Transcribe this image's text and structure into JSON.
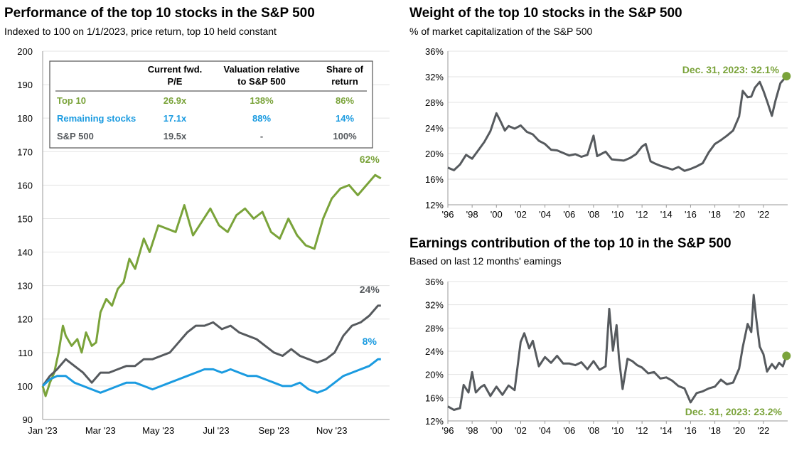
{
  "left_panel": {
    "title": "Performance of the top 10 stocks in the S&P 500",
    "subtitle": "Indexed to 100 on 1/1/2023, price return, top 10 held constant"
  },
  "top_right_panel": {
    "title": "Weight of the top 10 stocks in the S&P 500",
    "subtitle": "% of market capitalization of the S&P 500"
  },
  "bottom_right_panel": {
    "title": "Earnings contribution of the top 10 in the S&P 500",
    "subtitle": "Based on last 12 months' eamings"
  },
  "colors": {
    "top10": "#7AA33A",
    "remaining": "#1B9BE0",
    "sp500": "#565A5E"
  },
  "chart_data": [
    {
      "type": "line",
      "title": "Performance of the top 10 stocks in the S&P 500",
      "subtitle": "Indexed to 100 on 1/1/2023, price return, top 10 held constant",
      "x_ticks": [
        "Jan '23",
        "Mar '23",
        "May '23",
        "Jul '23",
        "Sep '23",
        "Nov '23"
      ],
      "ylim": [
        90,
        200
      ],
      "y_ticks": [
        90,
        100,
        110,
        120,
        130,
        140,
        150,
        160,
        170,
        180,
        190,
        200
      ],
      "x_unit": "month of 2023 (0 = Jan 1)",
      "series": [
        {
          "name": "Top 10",
          "color": "#7AA33A",
          "end_label": "62%",
          "x": [
            0,
            0.1,
            0.25,
            0.4,
            0.55,
            0.7,
            0.8,
            1.0,
            1.2,
            1.35,
            1.5,
            1.7,
            1.85,
            2.0,
            2.2,
            2.4,
            2.6,
            2.8,
            3.0,
            3.2,
            3.5,
            3.7,
            4.0,
            4.3,
            4.6,
            4.9,
            5.2,
            5.5,
            5.8,
            6.1,
            6.4,
            6.7,
            7.0,
            7.3,
            7.6,
            7.9,
            8.2,
            8.5,
            8.8,
            9.1,
            9.4,
            9.7,
            10.0,
            10.3,
            10.6,
            10.9,
            11.2,
            11.5,
            11.7
          ],
          "y": [
            100,
            97,
            101,
            104,
            110,
            118,
            115,
            112,
            114,
            110,
            116,
            112,
            113,
            122,
            126,
            124,
            129,
            131,
            138,
            135,
            144,
            140,
            148,
            147,
            146,
            154,
            145,
            149,
            153,
            148,
            146,
            151,
            153,
            150,
            152,
            146,
            144,
            150,
            145,
            142,
            141,
            150,
            156,
            159,
            160,
            157,
            160,
            163,
            162
          ]
        },
        {
          "name": "S&P 500",
          "color": "#565A5E",
          "end_label": "24%",
          "x": [
            0,
            0.25,
            0.5,
            0.8,
            1.1,
            1.4,
            1.7,
            2.0,
            2.3,
            2.6,
            2.9,
            3.2,
            3.5,
            3.8,
            4.1,
            4.4,
            4.7,
            5.0,
            5.3,
            5.6,
            5.9,
            6.2,
            6.5,
            6.8,
            7.1,
            7.4,
            7.7,
            8.0,
            8.3,
            8.6,
            8.9,
            9.2,
            9.5,
            9.8,
            10.1,
            10.4,
            10.7,
            11.0,
            11.3,
            11.6,
            11.7
          ],
          "y": [
            100,
            103,
            105,
            108,
            106,
            104,
            101,
            104,
            104,
            105,
            106,
            106,
            108,
            108,
            109,
            110,
            113,
            116,
            118,
            118,
            119,
            117,
            118,
            116,
            115,
            114,
            112,
            110,
            109,
            111,
            109,
            108,
            107,
            108,
            110,
            115,
            118,
            119,
            121,
            124,
            124
          ]
        },
        {
          "name": "Remaining stocks",
          "color": "#1B9BE0",
          "end_label": "8%",
          "x": [
            0,
            0.25,
            0.5,
            0.8,
            1.1,
            1.4,
            1.7,
            2.0,
            2.3,
            2.6,
            2.9,
            3.2,
            3.5,
            3.8,
            4.1,
            4.4,
            4.7,
            5.0,
            5.3,
            5.6,
            5.9,
            6.2,
            6.5,
            6.8,
            7.1,
            7.4,
            7.7,
            8.0,
            8.3,
            8.6,
            8.9,
            9.2,
            9.5,
            9.8,
            10.1,
            10.4,
            10.7,
            11.0,
            11.3,
            11.6,
            11.7
          ],
          "y": [
            100,
            102,
            103,
            103,
            101,
            100,
            99,
            98,
            99,
            100,
            101,
            101,
            100,
            99,
            100,
            101,
            102,
            103,
            104,
            105,
            105,
            104,
            105,
            104,
            103,
            103,
            102,
            101,
            100,
            100,
            101,
            99,
            98,
            99,
            101,
            103,
            104,
            105,
            106,
            108,
            108
          ]
        }
      ],
      "table": {
        "headers": [
          "",
          "Current fwd.\nP/E",
          "Valuation relative\nto S&P 500",
          "Share of\nreturn"
        ],
        "rows": [
          {
            "label": "Top 10",
            "pe": "26.9x",
            "valuation": "138%",
            "share": "86%"
          },
          {
            "label": "Remaining stocks",
            "pe": "17.1x",
            "valuation": "88%",
            "share": "14%"
          },
          {
            "label": "S&P 500",
            "pe": "19.5x",
            "valuation": "-",
            "share": "100%"
          }
        ]
      }
    },
    {
      "type": "line",
      "title": "Weight of the top 10 stocks in the S&P 500",
      "subtitle": "% of market capitalization of the S&P 500",
      "x_ticks": [
        "'96",
        "'98",
        "'00",
        "'02",
        "'04",
        "'06",
        "'08",
        "'10",
        "'12",
        "'14",
        "'16",
        "'18",
        "'20",
        "'22"
      ],
      "xlim": [
        1996,
        2024
      ],
      "ylim": [
        12,
        36
      ],
      "y_ticks": [
        "12%",
        "16%",
        "20%",
        "24%",
        "28%",
        "32%",
        "36%"
      ],
      "y_tick_values": [
        12,
        16,
        20,
        24,
        28,
        32,
        36
      ],
      "annotation": "Dec. 31, 2023: 32.1%",
      "endpoint": {
        "x": 2023.9,
        "y": 32.1
      },
      "series": [
        {
          "name": "Top 10 weight",
          "color": "#565A5E",
          "x": [
            1996,
            1996.5,
            1997,
            1997.5,
            1998,
            1998.5,
            1999,
            1999.5,
            2000,
            2000.3,
            2000.7,
            2001,
            2001.5,
            2002,
            2002.5,
            2003,
            2003.5,
            2004,
            2004.5,
            2005,
            2005.5,
            2006,
            2006.5,
            2007,
            2007.5,
            2008,
            2008.3,
            2008.7,
            2009,
            2009.5,
            2010,
            2010.5,
            2011,
            2011.5,
            2012,
            2012.3,
            2012.7,
            2013,
            2013.5,
            2014,
            2014.5,
            2015,
            2015.5,
            2016,
            2016.5,
            2017,
            2017.5,
            2018,
            2018.5,
            2019,
            2019.5,
            2020,
            2020.3,
            2020.7,
            2021,
            2021.3,
            2021.7,
            2022,
            2022.3,
            2022.7,
            2023,
            2023.4,
            2023.9
          ],
          "y": [
            17.8,
            17.4,
            18.3,
            19.8,
            19.2,
            20.5,
            21.8,
            23.5,
            26.3,
            25.2,
            23.6,
            24.3,
            23.9,
            24.4,
            23.4,
            23.0,
            22.0,
            21.5,
            20.6,
            20.5,
            20.1,
            19.7,
            19.9,
            19.5,
            19.8,
            22.8,
            19.6,
            20.0,
            20.3,
            19.1,
            19.0,
            18.9,
            19.3,
            19.9,
            21.1,
            21.5,
            18.8,
            18.5,
            18.1,
            17.8,
            17.5,
            17.9,
            17.3,
            17.6,
            18.0,
            18.5,
            20.2,
            21.5,
            22.1,
            22.8,
            23.6,
            25.8,
            29.8,
            28.8,
            28.9,
            30.3,
            31.2,
            29.8,
            28.2,
            25.9,
            28.3,
            31.0,
            32.1
          ]
        }
      ]
    },
    {
      "type": "line",
      "title": "Earnings contribution of the top 10 in the S&P 500",
      "subtitle": "Based on last 12 months' eamings",
      "x_ticks": [
        "'96",
        "'98",
        "'00",
        "'02",
        "'04",
        "'06",
        "'08",
        "'10",
        "'12",
        "'14",
        "'16",
        "'18",
        "'20",
        "'22"
      ],
      "xlim": [
        1996,
        2024
      ],
      "ylim": [
        12,
        36
      ],
      "y_ticks": [
        "12%",
        "16%",
        "20%",
        "24%",
        "28%",
        "32%",
        "36%"
      ],
      "y_tick_values": [
        12,
        16,
        20,
        24,
        28,
        32,
        36
      ],
      "annotation": "Dec. 31, 2023: 23.2%",
      "endpoint": {
        "x": 2023.9,
        "y": 23.2
      },
      "series": [
        {
          "name": "Top 10 earnings contribution",
          "color": "#565A5E",
          "x": [
            1996,
            1996.5,
            1997,
            1997.3,
            1997.7,
            1998,
            1998.3,
            1998.7,
            1999,
            1999.5,
            2000,
            2000.5,
            2001,
            2001.5,
            2002,
            2002.3,
            2002.7,
            2003,
            2003.5,
            2004,
            2004.5,
            2005,
            2005.5,
            2006,
            2006.5,
            2007,
            2007.5,
            2008,
            2008.5,
            2009,
            2009.3,
            2009.6,
            2009.9,
            2010.1,
            2010.4,
            2010.8,
            2011.2,
            2011.6,
            2012,
            2012.5,
            2013,
            2013.5,
            2014,
            2014.5,
            2015,
            2015.5,
            2016,
            2016.5,
            2017,
            2017.5,
            2018,
            2018.5,
            2019,
            2019.5,
            2020,
            2020.3,
            2020.7,
            2021,
            2021.2,
            2021.4,
            2021.7,
            2022,
            2022.3,
            2022.7,
            2023,
            2023.3,
            2023.6,
            2023.9
          ],
          "y": [
            14.5,
            13.9,
            14.2,
            18.2,
            16.9,
            20.4,
            16.9,
            17.8,
            18.2,
            16.3,
            17.9,
            16.5,
            18.1,
            17.3,
            25.6,
            27.1,
            24.5,
            25.8,
            21.4,
            23.0,
            22.0,
            23.2,
            21.9,
            21.9,
            21.6,
            22.1,
            20.9,
            22.3,
            20.8,
            21.4,
            31.3,
            24.1,
            28.5,
            22.8,
            17.5,
            22.7,
            22.3,
            21.6,
            21.2,
            20.2,
            20.4,
            19.3,
            19.5,
            18.9,
            18.0,
            17.6,
            15.2,
            16.8,
            17.1,
            17.6,
            17.9,
            19.1,
            18.3,
            18.6,
            21.0,
            24.7,
            28.7,
            27.3,
            33.7,
            29.8,
            24.8,
            23.5,
            20.5,
            21.8,
            21.0,
            22.0,
            21.4,
            23.2
          ]
        }
      ]
    }
  ]
}
